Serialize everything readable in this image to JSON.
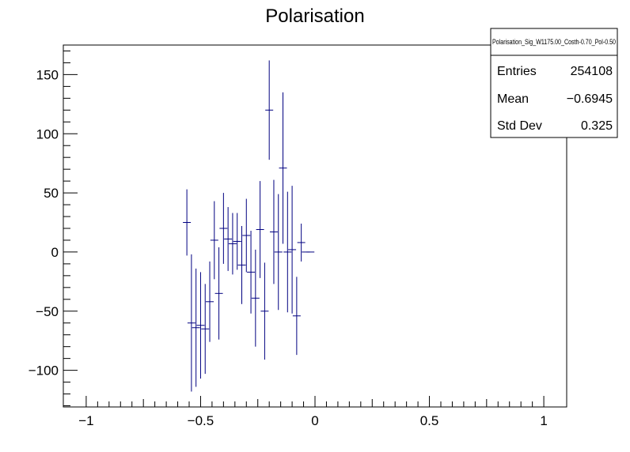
{
  "chart_data": {
    "type": "scatter",
    "title": "Polarisation",
    "xlabel": "",
    "ylabel": "",
    "xlim": [
      -1.1,
      1.1
    ],
    "ylim": [
      -131,
      175
    ],
    "x_ticks": [
      -1,
      -0.5,
      0,
      0.5,
      1
    ],
    "x_tick_labels": [
      "−1",
      "−0.5",
      "0",
      "0.5",
      "1"
    ],
    "y_ticks": [
      -100,
      -50,
      0,
      50,
      100,
      150
    ],
    "y_tick_labels": [
      "−100",
      "−50",
      "0",
      "50",
      "100",
      "150"
    ],
    "grid": false,
    "legend": "none",
    "marker_color": "#000080",
    "series": [
      {
        "x": [
          -0.56,
          -0.54,
          -0.52,
          -0.5,
          -0.48,
          -0.46,
          -0.44,
          -0.42,
          -0.4,
          -0.38,
          -0.36,
          -0.34,
          -0.32,
          -0.3,
          -0.28,
          -0.26,
          -0.24,
          -0.22,
          -0.2,
          -0.18,
          -0.16,
          -0.14,
          -0.12,
          -0.1,
          -0.08,
          -0.06,
          -0.04,
          -0.02
        ],
        "y": [
          25,
          -60,
          -64,
          -62,
          -65,
          -42,
          10,
          -35,
          20,
          11,
          7,
          9,
          -11,
          14,
          -17,
          -39,
          19,
          -50,
          120,
          17,
          0,
          71,
          0,
          2,
          -54,
          8,
          0,
          0
        ],
        "err": [
          28,
          58,
          50,
          45,
          38,
          34,
          33,
          39,
          30,
          27,
          26,
          24,
          33,
          31,
          35,
          41,
          41,
          41,
          42,
          44,
          49,
          64,
          51,
          54,
          33,
          16,
          0,
          0
        ]
      }
    ],
    "stats": {
      "name": "Polarisation_Sig_W1175.00_Costh-0.70_Pol-0.50",
      "rows": [
        {
          "label": "Entries",
          "value": "254108"
        },
        {
          "label": "Mean",
          "value": "−0.6945"
        },
        {
          "label": "Std Dev",
          "value": "0.325"
        }
      ]
    }
  }
}
